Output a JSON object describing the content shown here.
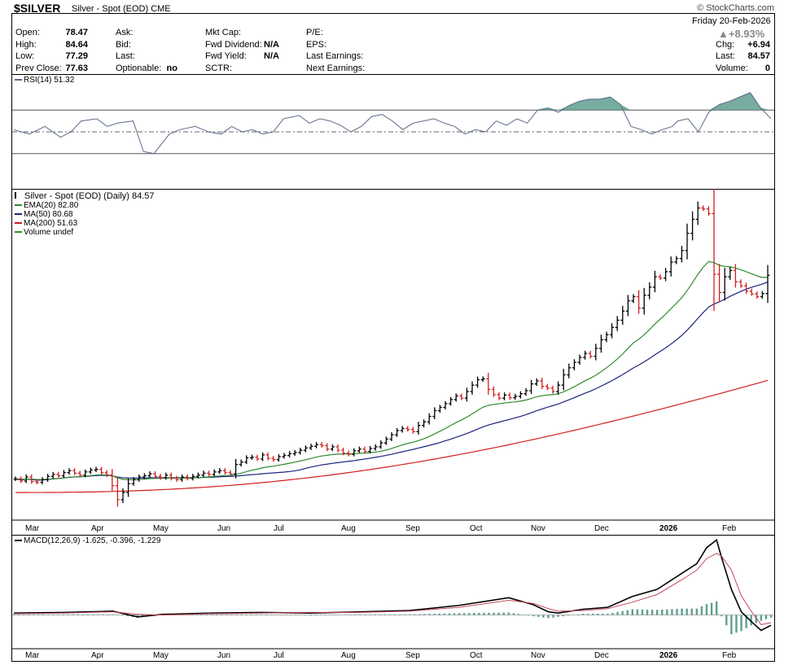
{
  "header": {
    "symbol": "$SILVER",
    "name": "Silver - Spot (EOD)",
    "exchange": "CME",
    "brand": "© StockCharts.com",
    "date": "Friday  20-Feb-2026",
    "change_pct": "▲+8.93%",
    "quote_col1": [
      {
        "label": "Open:",
        "value": "78.47"
      },
      {
        "label": "High:",
        "value": "84.64"
      },
      {
        "label": "Low:",
        "value": "77.29"
      },
      {
        "label": "Prev Close:",
        "value": "77.63"
      }
    ],
    "quote_col2": [
      {
        "label": "Ask:",
        "value": ""
      },
      {
        "label": "Bid:",
        "value": ""
      },
      {
        "label": "Last:",
        "value": ""
      },
      {
        "label": "Optionable:",
        "value": "no"
      }
    ],
    "quote_col3": [
      {
        "label": "Mkt Cap:",
        "value": ""
      },
      {
        "label": "Fwd Dividend:",
        "value": "N/A"
      },
      {
        "label": "Fwd Yield:",
        "value": "N/A"
      },
      {
        "label": "SCTR:",
        "value": ""
      }
    ],
    "quote_col4": [
      {
        "label": "P/E:",
        "value": ""
      },
      {
        "label": "EPS:",
        "value": ""
      },
      {
        "label": "Last Earnings:",
        "value": ""
      },
      {
        "label": "Next Earnings:",
        "value": ""
      }
    ],
    "quote_col5": [
      {
        "label": "Chg:",
        "value": "+6.94"
      },
      {
        "label": "Last:",
        "value": "84.57"
      },
      {
        "label": "Volume:",
        "value": "0"
      }
    ]
  },
  "colors": {
    "ema20": "#2e8b2e",
    "ma50": "#1a237e",
    "ma200": "#d21f1f",
    "up": "#000000",
    "down": "#d21f1f",
    "rsi": "#5a6a8a",
    "fill": "#5f9e8f",
    "macd_signal": "#c4485c"
  },
  "chart_data": [
    {
      "type": "line",
      "title": "RSI(14) 51.32",
      "ylim": [
        0,
        100
      ],
      "y_ticks": [
        10,
        30,
        50,
        70,
        90
      ],
      "reference_lines": [
        30,
        70
      ],
      "last_value_label": "51.32",
      "series": [
        {
          "name": "RSI(14)",
          "x": [
            0,
            6,
            12,
            18,
            22,
            26,
            32,
            36,
            40,
            46,
            50,
            54,
            60,
            64,
            70,
            75,
            80,
            84,
            88,
            92,
            96,
            100,
            104,
            110,
            114,
            118,
            122,
            126,
            130,
            134,
            138,
            142,
            146,
            150,
            154,
            158,
            162,
            166,
            170,
            174,
            178,
            182,
            186,
            190,
            194,
            198,
            202,
            206,
            210,
            214,
            218,
            222,
            226,
            230,
            234,
            238,
            242,
            246,
            250,
            254,
            256,
            260,
            264,
            268,
            272,
            276,
            280,
            284,
            288,
            292
          ],
          "values": [
            52,
            48,
            55,
            45,
            50,
            60,
            62,
            55,
            58,
            60,
            32,
            30,
            48,
            52,
            55,
            50,
            48,
            55,
            50,
            52,
            48,
            50,
            62,
            65,
            58,
            62,
            60,
            56,
            50,
            55,
            64,
            66,
            60,
            52,
            58,
            60,
            62,
            58,
            55,
            48,
            52,
            50,
            60,
            56,
            62,
            58,
            70,
            72,
            68,
            74,
            78,
            80,
            80,
            82,
            75,
            55,
            52,
            48,
            52,
            55,
            60,
            62,
            50,
            68,
            75,
            78,
            82,
            86,
            72,
            62
          ]
        }
      ]
    },
    {
      "type": "ohlc",
      "title": "Silver - Spot (EOD) (Daily) 84.57",
      "scale": "log",
      "ylim": [
        27,
        125
      ],
      "y_ticks": [
        30,
        35,
        40,
        45,
        50,
        55,
        60,
        65,
        70,
        75,
        80,
        85,
        90,
        95,
        100,
        105,
        110,
        115,
        120
      ],
      "x_labels": [
        "Mar",
        "Apr",
        "May",
        "Jun",
        "Jul",
        "Aug",
        "Sep",
        "Oct",
        "Nov",
        "Dec",
        "2026",
        "Feb"
      ],
      "legend": [
        {
          "name": "EMA(20) 82.80",
          "color": "#2e8b2e"
        },
        {
          "name": "MA(50) 80.68",
          "color": "#1a237e"
        },
        {
          "name": "MA(200) 51.63",
          "color": "#d21f1f"
        },
        {
          "name": "Volume undef",
          "color": "#2e8b2e"
        }
      ],
      "last_labels": [
        {
          "text": "84.57",
          "value": 84.57
        },
        {
          "text": "80.68",
          "value": 80.68
        },
        {
          "text": "51.63",
          "value": 51.63
        }
      ],
      "price_close": [
        32.5,
        32.2,
        32.8,
        32.1,
        32.0,
        32.4,
        32.9,
        33.2,
        33.0,
        33.5,
        33.8,
        33.4,
        33.1,
        33.6,
        33.9,
        34.0,
        33.5,
        33.1,
        31.5,
        29.5,
        30.5,
        31.8,
        32.4,
        32.8,
        33.0,
        33.3,
        32.9,
        32.7,
        33.1,
        32.6,
        32.4,
        32.8,
        32.6,
        32.9,
        33.1,
        33.4,
        33.2,
        33.6,
        33.8,
        33.5,
        33.3,
        34.8,
        35.2,
        35.9,
        36.0,
        35.7,
        36.4,
        35.8,
        35.6,
        36.1,
        36.3,
        36.6,
        36.8,
        37.2,
        37.6,
        37.9,
        38.2,
        38.0,
        37.4,
        37.8,
        37.2,
        36.7,
        36.5,
        37.1,
        37.4,
        37.0,
        37.5,
        37.8,
        38.5,
        39.2,
        40.0,
        40.8,
        41.2,
        41.0,
        40.6,
        41.8,
        42.5,
        43.6,
        44.8,
        45.5,
        46.3,
        47.2,
        48.0,
        47.5,
        49.0,
        50.5,
        51.8,
        52.0,
        49.5,
        48.3,
        47.5,
        48.2,
        47.6,
        47.9,
        48.5,
        49.2,
        50.8,
        51.5,
        50.2,
        49.8,
        49.0,
        50.5,
        53.0,
        54.8,
        56.2,
        57.5,
        58.6,
        57.8,
        60.0,
        62.5,
        64.0,
        66.2,
        68.5,
        71.5,
        75.0,
        76.5,
        72.5,
        77.0,
        80.0,
        84.0,
        83.5,
        86.0,
        90.0,
        91.5,
        95.0,
        103.0,
        110.0,
        116.0,
        115.5,
        113.0,
        85.0,
        78.0,
        84.0,
        86.5,
        82.0,
        80.5,
        78.5,
        77.5,
        76.5,
        77.63,
        84.57
      ],
      "ema20_end": 82.8,
      "ma50_end": 80.68,
      "ma200_end": 51.63
    },
    {
      "type": "line",
      "title": "MACD(12,26,9) -1.625, -0.396, -1.229",
      "ylim": [
        -5,
        12
      ],
      "y_ticks": [
        -4,
        -2,
        0,
        2,
        4,
        6,
        8,
        10,
        12
      ],
      "last_labels": [
        {
          "text": "-0.396",
          "value": -0.396
        },
        {
          "text": "-1.625",
          "value": -1.625
        }
      ],
      "series": [
        {
          "name": "MACD(12,26,9)",
          "x": [
            0,
            20,
            40,
            50,
            60,
            80,
            100,
            120,
            140,
            160,
            180,
            200,
            210,
            216,
            220,
            230,
            240,
            250,
            260,
            270,
            276,
            280,
            284,
            286,
            290,
            294,
            298,
            302,
            306
          ],
          "values": [
            0.3,
            0.4,
            0.6,
            -0.3,
            0.1,
            0.3,
            0.4,
            0.3,
            0.5,
            0.7,
            1.5,
            2.7,
            1.6,
            0.5,
            0.3,
            0.9,
            1.2,
            2.9,
            4.0,
            6.5,
            8.0,
            10.5,
            11.7,
            9.0,
            4.0,
            0.5,
            -1.0,
            -2.4,
            -1.6
          ]
        },
        {
          "name": "signal",
          "x": [
            0,
            20,
            40,
            50,
            60,
            80,
            100,
            120,
            140,
            160,
            180,
            200,
            210,
            216,
            220,
            230,
            240,
            250,
            260,
            270,
            276,
            280,
            284,
            286,
            290,
            294,
            298,
            302,
            306
          ],
          "values": [
            0.2,
            0.3,
            0.5,
            0.1,
            0.0,
            0.2,
            0.3,
            0.4,
            0.4,
            0.6,
            1.2,
            2.3,
            1.8,
            1.0,
            0.6,
            0.7,
            1.0,
            2.0,
            3.2,
            5.5,
            7.0,
            8.8,
            9.6,
            9.2,
            7.0,
            3.0,
            0.6,
            -1.5,
            -1.2
          ]
        }
      ],
      "histogram_x": [
        0,
        20,
        40,
        50,
        60,
        80,
        100,
        120,
        140,
        160,
        180,
        200,
        210,
        216,
        220,
        230,
        240,
        250,
        260,
        270,
        276,
        280,
        284,
        286,
        290,
        294,
        298,
        302,
        306
      ],
      "histogram": [
        0.1,
        0.1,
        0.1,
        -0.4,
        0.1,
        0.1,
        0.1,
        -0.1,
        0.1,
        0.1,
        0.3,
        0.4,
        -0.2,
        -0.5,
        -0.3,
        0.2,
        0.2,
        0.9,
        0.8,
        1.0,
        1.0,
        1.7,
        2.1,
        -0.2,
        -3.0,
        -2.5,
        -1.6,
        -0.9,
        -0.4
      ]
    }
  ]
}
